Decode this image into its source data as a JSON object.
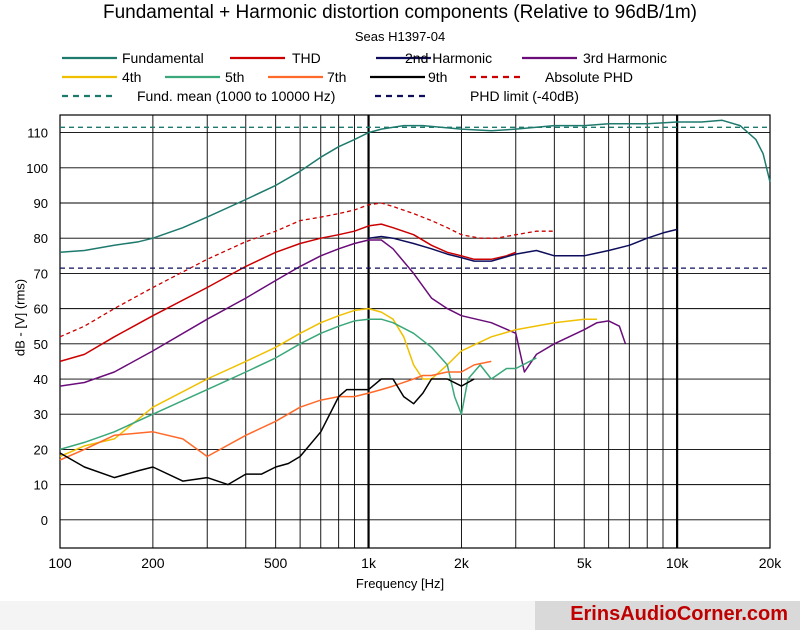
{
  "chart_data": {
    "type": "line",
    "title": "Fundamental + Harmonic distortion components (Relative to 96dB/1m)",
    "subtitle": "Seas H1397-04",
    "xlabel": "Frequency [Hz]",
    "ylabel": "dB - [V]  (rms)",
    "xscale": "log",
    "xlim": [
      100,
      20000
    ],
    "ylim": [
      -8,
      115
    ],
    "x_ticks": [
      100,
      200,
      500,
      1000,
      2000,
      5000,
      10000,
      20000
    ],
    "x_tick_labels": [
      "100",
      "200",
      "500",
      "1k",
      "2k",
      "5k",
      "10k",
      "20k"
    ],
    "y_ticks": [
      0,
      10,
      20,
      30,
      40,
      50,
      60,
      70,
      80,
      90,
      100,
      110
    ],
    "y_tick_labels": [
      "0",
      "10",
      "20",
      "30",
      "40",
      "50",
      "60",
      "70",
      "80",
      "90",
      "100",
      "110"
    ],
    "grid": true,
    "legend_placement": "top",
    "series": [
      {
        "name": "Fundamental",
        "color": "#1f7a6e",
        "style": "solid",
        "x": [
          100,
          120,
          150,
          180,
          200,
          250,
          300,
          400,
          500,
          600,
          700,
          800,
          900,
          1000,
          1100,
          1300,
          1500,
          2000,
          2500,
          3000,
          4000,
          5000,
          6000,
          8000,
          10000,
          12000,
          14000,
          16000,
          18000,
          19000,
          20000
        ],
        "y": [
          76,
          76.5,
          78,
          79,
          80,
          83,
          86,
          91,
          95,
          99,
          103,
          106,
          108,
          110,
          111,
          112,
          112,
          111,
          110.5,
          111,
          112,
          112,
          112.5,
          112.5,
          113,
          113,
          113.5,
          112,
          108,
          104,
          96
        ]
      },
      {
        "name": "THD",
        "color": "#cc0000",
        "style": "solid",
        "x": [
          100,
          120,
          150,
          200,
          300,
          400,
          500,
          600,
          700,
          800,
          900,
          1000,
          1100,
          1200,
          1400,
          1600,
          1800,
          2000,
          2200,
          2500,
          2800,
          3000
        ],
        "y": [
          45,
          47,
          52,
          58,
          66,
          72,
          76,
          78.5,
          80,
          81,
          82,
          83.5,
          84,
          83,
          81,
          78,
          76,
          75,
          74,
          74,
          75,
          76
        ]
      },
      {
        "name": "2nd Harmonic",
        "color": "#0d0d5c",
        "style": "solid",
        "x": [
          1000,
          1100,
          1200,
          1400,
          1600,
          1800,
          2000,
          2200,
          2500,
          3000,
          3500,
          4000,
          5000,
          6000,
          7000,
          8000,
          9000,
          10000
        ],
        "y": [
          80,
          80.5,
          80,
          78.5,
          77,
          75.5,
          74.5,
          73.5,
          73.5,
          75.5,
          76.5,
          75,
          75,
          76.5,
          78,
          80,
          81.5,
          82.5
        ]
      },
      {
        "name": "3rd Harmonic",
        "color": "#6a0d7a",
        "style": "solid",
        "x": [
          100,
          120,
          150,
          200,
          300,
          400,
          500,
          600,
          700,
          800,
          900,
          1000,
          1100,
          1200,
          1400,
          1600,
          1800,
          2000,
          2500,
          3000,
          3200,
          3500,
          4000,
          5000,
          5500,
          6000,
          6500,
          6800
        ],
        "y": [
          38,
          39,
          42,
          48,
          57,
          63,
          68,
          72,
          75,
          77,
          78.5,
          79.5,
          79.5,
          77,
          70,
          63,
          60,
          58,
          56,
          53,
          42,
          47,
          50,
          54,
          56,
          56.5,
          55,
          50
        ]
      },
      {
        "name": "4th",
        "color": "#f0c000",
        "style": "solid",
        "x": [
          100,
          120,
          150,
          200,
          300,
          400,
          500,
          600,
          700,
          800,
          900,
          1000,
          1100,
          1200,
          1300,
          1400,
          1500,
          1600,
          1800,
          2000,
          2500,
          3000,
          4000,
          5000,
          5500
        ],
        "y": [
          18,
          21,
          23,
          32,
          40,
          45,
          49,
          53,
          56,
          58,
          59.5,
          60,
          59,
          57,
          52,
          44,
          40,
          40,
          44,
          48,
          52,
          54,
          56,
          57,
          57
        ]
      },
      {
        "name": "5th",
        "color": "#3aa87a",
        "style": "solid",
        "x": [
          100,
          120,
          150,
          200,
          300,
          400,
          500,
          600,
          700,
          800,
          900,
          1000,
          1100,
          1200,
          1400,
          1600,
          1800,
          1900,
          2000,
          2100,
          2300,
          2500,
          2800,
          3000,
          3500
        ],
        "y": [
          20,
          22,
          25,
          30,
          37,
          42,
          46,
          50,
          53,
          55,
          56.5,
          57,
          57,
          56,
          53,
          49,
          44,
          35,
          30,
          40,
          44,
          40,
          43,
          43,
          46
        ]
      },
      {
        "name": "7th",
        "color": "#ff6a2a",
        "style": "solid",
        "x": [
          100,
          120,
          150,
          200,
          250,
          300,
          400,
          500,
          600,
          700,
          800,
          900,
          1000,
          1100,
          1200,
          1400,
          1500,
          1600,
          1800,
          2000,
          2200,
          2500
        ],
        "y": [
          17,
          20,
          24,
          25,
          23,
          18,
          24,
          28,
          32,
          34,
          35,
          35,
          36,
          37,
          38,
          40,
          41,
          41,
          42,
          42,
          44,
          45
        ]
      },
      {
        "name": "9th",
        "color": "#000000",
        "style": "solid",
        "x": [
          100,
          120,
          150,
          180,
          200,
          250,
          300,
          350,
          400,
          450,
          500,
          550,
          600,
          700,
          800,
          850,
          900,
          1000,
          1100,
          1200,
          1300,
          1400,
          1500,
          1600,
          1800,
          2000,
          2200
        ],
        "y": [
          19,
          15,
          12,
          14,
          15,
          11,
          12,
          10,
          13,
          13,
          15,
          16,
          18,
          25,
          35,
          37,
          37,
          37,
          40,
          40,
          35,
          33,
          36,
          40,
          40,
          38,
          40
        ]
      },
      {
        "name": "Absolute PHD",
        "color": "#cc0000",
        "style": "dashed",
        "x": [
          100,
          120,
          150,
          200,
          300,
          400,
          500,
          600,
          700,
          800,
          900,
          1000,
          1100,
          1200,
          1400,
          1600,
          1800,
          2000,
          2300,
          2600,
          3000,
          3500,
          4000
        ],
        "y": [
          52,
          55,
          60,
          66,
          74,
          79,
          82,
          85,
          86,
          87,
          88,
          89.5,
          90,
          89,
          87,
          85,
          83,
          81,
          80,
          80,
          81,
          82,
          82
        ]
      },
      {
        "name": "Fund. mean (1000 to 10000 Hz)",
        "color": "#1f7a6e",
        "style": "dashed",
        "x": [
          100,
          20000
        ],
        "y": [
          111.5,
          111.5
        ]
      },
      {
        "name": "PHD limit (-40dB)",
        "color": "#0d0d5c",
        "style": "dashed",
        "x": [
          100,
          20000
        ],
        "y": [
          71.5,
          71.5
        ]
      }
    ]
  },
  "footer": {
    "brand": "ErinsAudioCorner.com"
  }
}
